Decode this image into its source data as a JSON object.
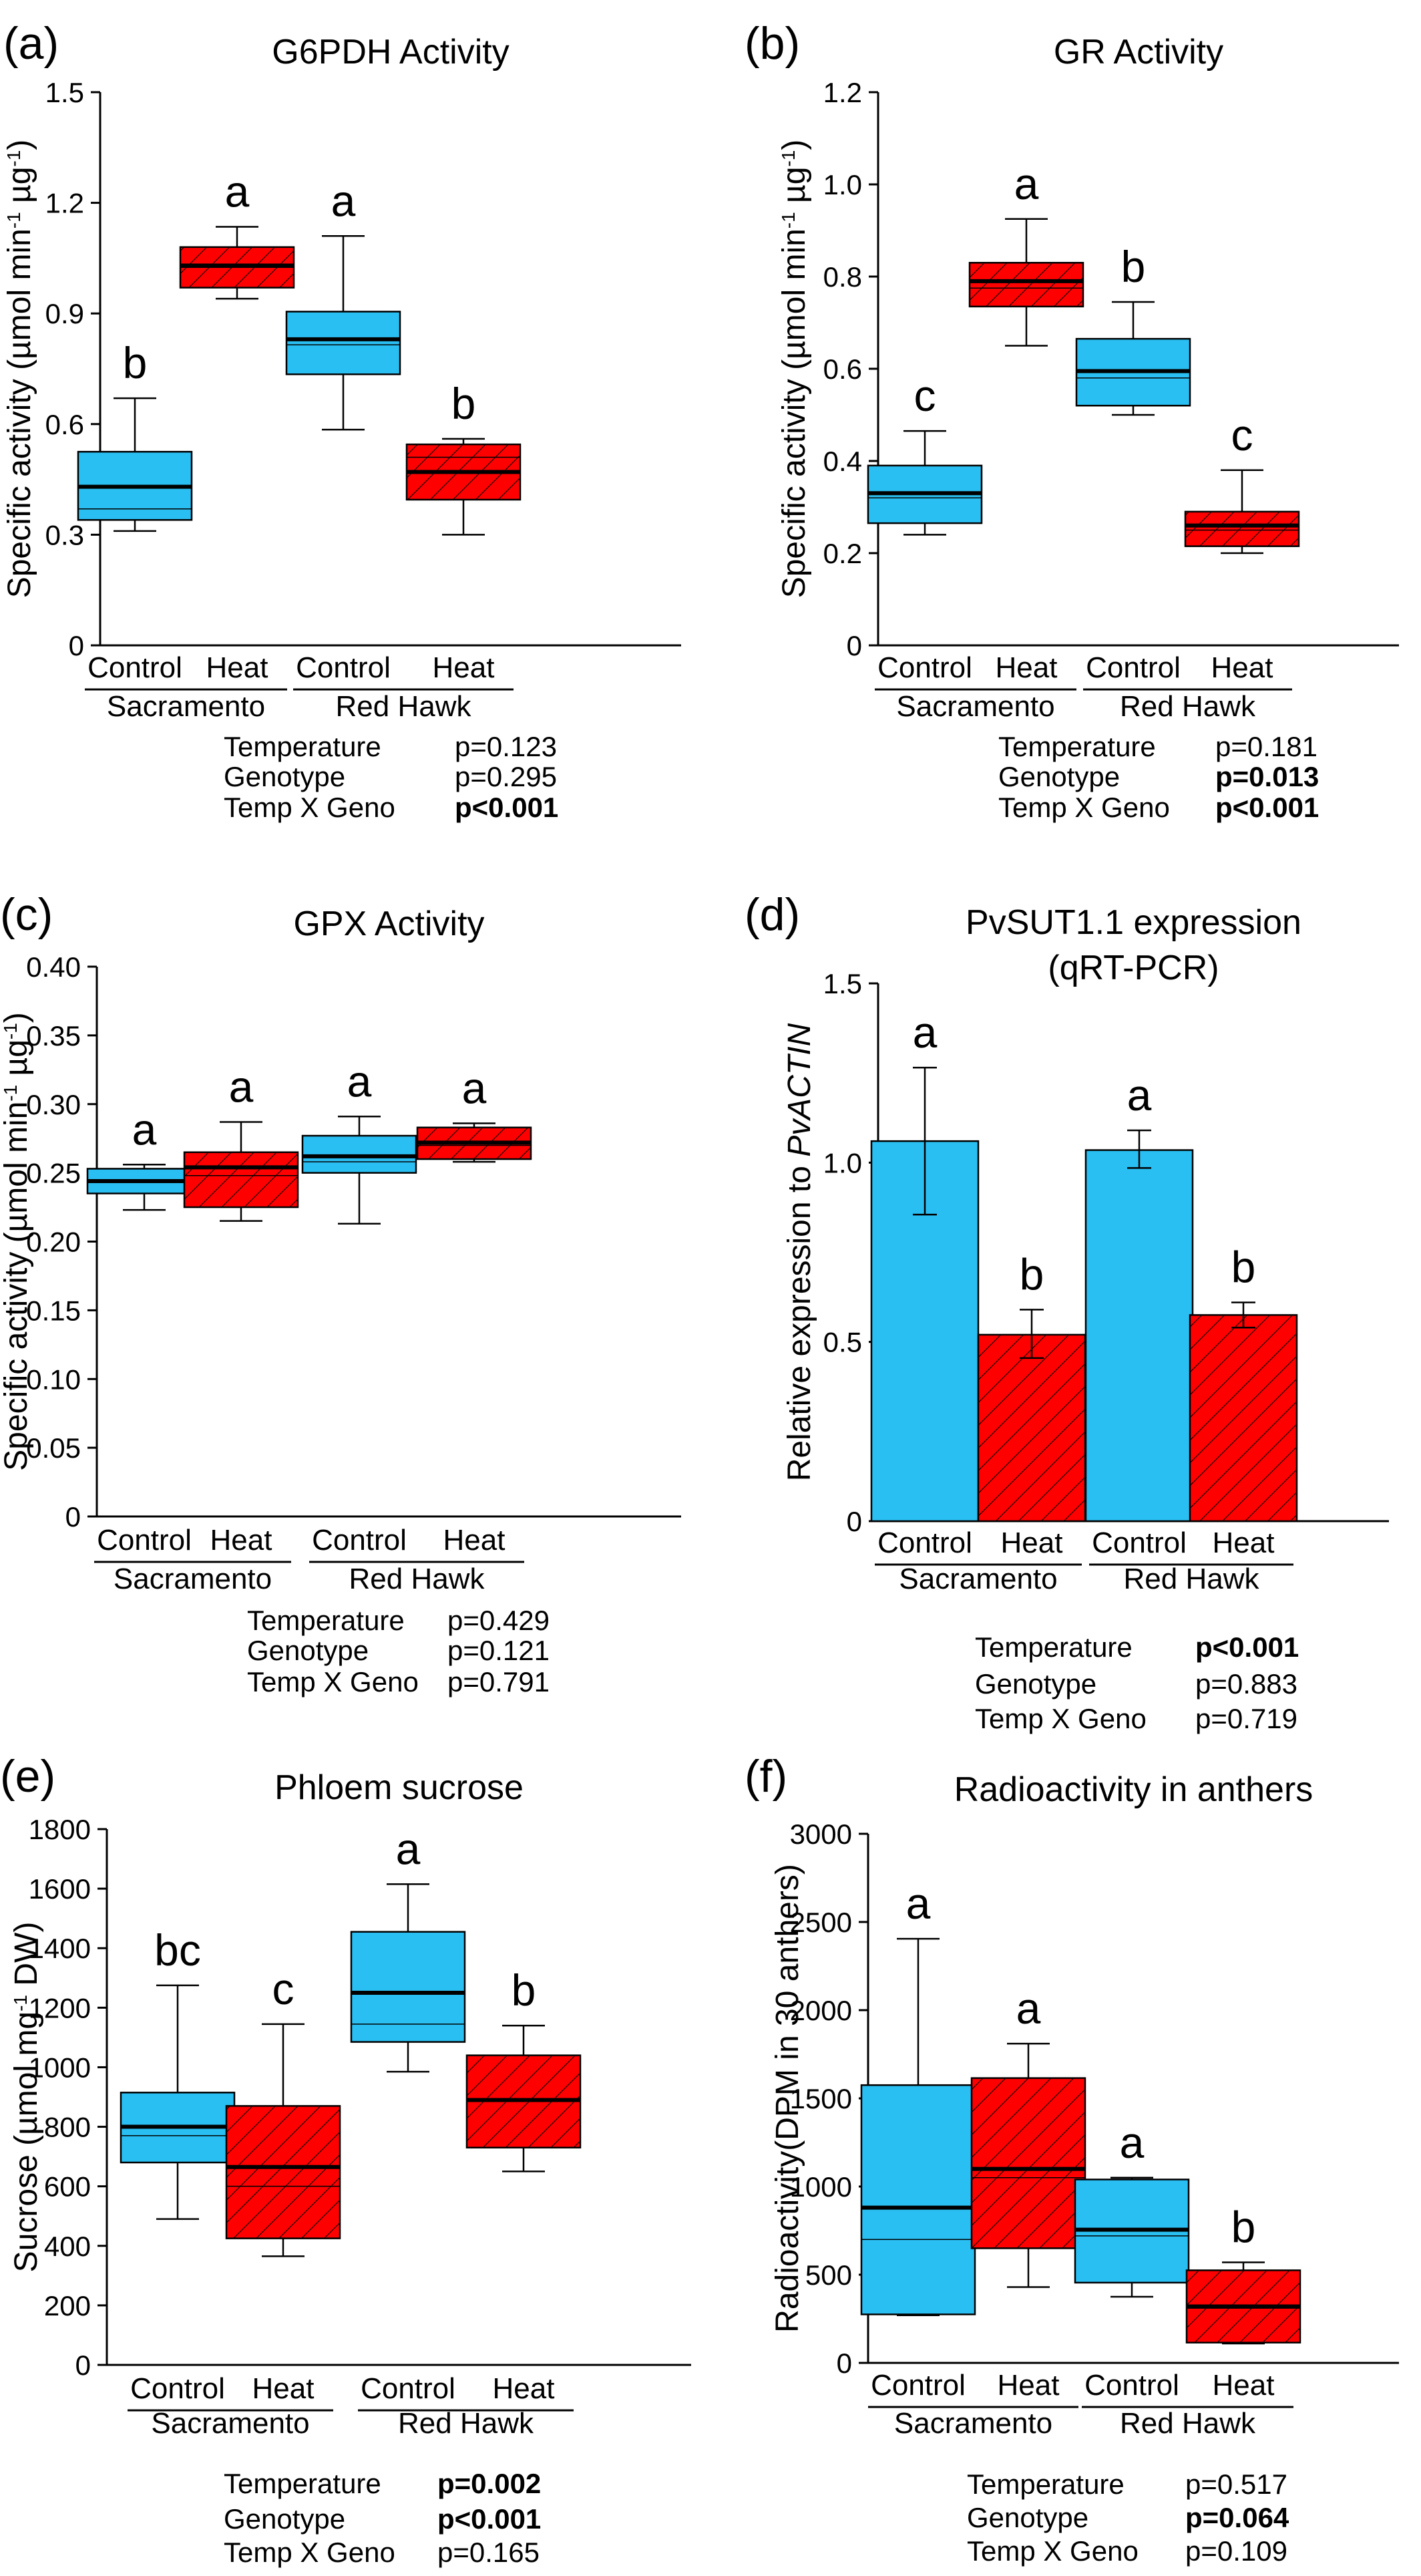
{
  "colors": {
    "control": "#2ABFF2",
    "heat": "#FF0000",
    "edge": "#000000"
  },
  "chart_data": [
    {
      "panel": "(a)",
      "type": "box",
      "title": "G6PDH Activity",
      "ylabel_parts": [
        "Specific activity (µmol min",
        "-1",
        " µg",
        "-1",
        ")"
      ],
      "ylim": [
        0,
        1.5
      ],
      "yticks": [
        "0",
        "0.3",
        "0.6",
        "0.9",
        "1.2",
        "1.5"
      ],
      "categories": [
        "Control",
        "Heat",
        "Control",
        "Heat"
      ],
      "groups": [
        "Sacramento",
        "Red Hawk"
      ],
      "boxes": [
        {
          "min": 0.31,
          "q1": 0.34,
          "median": 0.43,
          "mean": 0.37,
          "q3": 0.525,
          "max": 0.67,
          "letter": "b"
        },
        {
          "min": 0.94,
          "q1": 0.97,
          "median": 1.03,
          "mean": 1.025,
          "q3": 1.08,
          "max": 1.135,
          "letter": "a"
        },
        {
          "min": 0.585,
          "q1": 0.735,
          "median": 0.83,
          "mean": 0.815,
          "q3": 0.905,
          "max": 1.11,
          "letter": "a"
        },
        {
          "min": 0.3,
          "q1": 0.395,
          "median": 0.47,
          "mean": 0.51,
          "q3": 0.545,
          "max": 0.56,
          "letter": "b"
        }
      ],
      "stats": [
        {
          "label": "Temperature",
          "value": "p=0.123",
          "bold": false
        },
        {
          "label": "Genotype",
          "value": "p=0.295",
          "bold": false
        },
        {
          "label": "Temp X Geno",
          "value": "p<0.001",
          "bold": true
        }
      ]
    },
    {
      "panel": "(b)",
      "type": "box",
      "title": "GR Activity",
      "ylabel_parts": [
        "Specific activity (µmol min",
        "-1",
        " µg",
        "-1",
        ")"
      ],
      "ylim": [
        0,
        1.2
      ],
      "yticks": [
        "0",
        "0.2",
        "0.4",
        "0.6",
        "0.8",
        "1.0",
        "1.2"
      ],
      "categories": [
        "Control",
        "Heat",
        "Control",
        "Heat"
      ],
      "groups": [
        "Sacramento",
        "Red Hawk"
      ],
      "boxes": [
        {
          "min": 0.24,
          "q1": 0.265,
          "median": 0.33,
          "mean": 0.32,
          "q3": 0.39,
          "max": 0.465,
          "letter": "c"
        },
        {
          "min": 0.65,
          "q1": 0.735,
          "median": 0.79,
          "mean": 0.775,
          "q3": 0.83,
          "max": 0.925,
          "letter": "a"
        },
        {
          "min": 0.5,
          "q1": 0.52,
          "median": 0.595,
          "mean": 0.58,
          "q3": 0.665,
          "max": 0.745,
          "letter": "b"
        },
        {
          "min": 0.2,
          "q1": 0.215,
          "median": 0.26,
          "mean": 0.25,
          "q3": 0.29,
          "max": 0.38,
          "letter": "c"
        }
      ],
      "stats": [
        {
          "label": "Temperature",
          "value": "p=0.181",
          "bold": false
        },
        {
          "label": "Genotype",
          "value": "p=0.013",
          "bold": true
        },
        {
          "label": "Temp X Geno",
          "value": "p<0.001",
          "bold": true
        }
      ]
    },
    {
      "panel": "(c)",
      "type": "box",
      "title": "GPX Activity",
      "ylabel_parts": [
        "Specific activity (µmol min",
        "-1",
        " µg",
        "-1",
        ")"
      ],
      "ylim": [
        0,
        0.4
      ],
      "yticks": [
        "0",
        "0.05",
        "0.10",
        "0.15",
        "0.20",
        "0.25",
        "0.30",
        "0.35",
        "0.40"
      ],
      "categories": [
        "Control",
        "Heat",
        "Control",
        "Heat"
      ],
      "groups": [
        "Sacramento",
        "Red Hawk"
      ],
      "boxes": [
        {
          "min": 0.223,
          "q1": 0.235,
          "median": 0.244,
          "mean": 0.243,
          "q3": 0.253,
          "max": 0.256,
          "letter": "a"
        },
        {
          "min": 0.215,
          "q1": 0.225,
          "median": 0.254,
          "mean": 0.248,
          "q3": 0.265,
          "max": 0.287,
          "letter": "a"
        },
        {
          "min": 0.213,
          "q1": 0.25,
          "median": 0.262,
          "mean": 0.258,
          "q3": 0.277,
          "max": 0.291,
          "letter": "a"
        },
        {
          "min": 0.258,
          "q1": 0.26,
          "median": 0.272,
          "mean": 0.27,
          "q3": 0.283,
          "max": 0.286,
          "letter": "a"
        }
      ],
      "stats": [
        {
          "label": "Temperature",
          "value": "p=0.429",
          "bold": false
        },
        {
          "label": "Genotype",
          "value": "p=0.121",
          "bold": false
        },
        {
          "label": "Temp X Geno",
          "value": "p=0.791",
          "bold": false
        }
      ]
    },
    {
      "panel": "(d)",
      "type": "bar",
      "title": "PvSUT1.1 expression",
      "subtitle": "(qRT-PCR)",
      "ylabel_plain": "Relative expression to ",
      "ylabel_italic": "PvACTIN",
      "ylim": [
        0,
        1.5
      ],
      "yticks": [
        "0",
        "0.5",
        "1.0",
        "1.5"
      ],
      "categories": [
        "Control",
        "Heat",
        "Control",
        "Heat"
      ],
      "groups": [
        "Sacramento",
        "Red Hawk"
      ],
      "bars": [
        {
          "value": 1.06,
          "err_low": 0.855,
          "err_high": 1.265,
          "letter": "a"
        },
        {
          "value": 0.52,
          "err_low": 0.455,
          "err_high": 0.59,
          "letter": "b"
        },
        {
          "value": 1.035,
          "err_low": 0.985,
          "err_high": 1.09,
          "letter": "a"
        },
        {
          "value": 0.575,
          "err_low": 0.54,
          "err_high": 0.61,
          "letter": "b"
        }
      ],
      "stats": [
        {
          "label": "Temperature",
          "value": "p<0.001",
          "bold": true
        },
        {
          "label": "Genotype",
          "value": "p=0.883",
          "bold": false
        },
        {
          "label": "Temp X Geno",
          "value": "p=0.719",
          "bold": false
        }
      ]
    },
    {
      "panel": "(e)",
      "type": "box",
      "title": "Phloem sucrose",
      "ylabel_parts": [
        "Sucrose (µmol mg",
        "-1",
        " DW)",
        "",
        ""
      ],
      "ylim": [
        0,
        1800
      ],
      "yticks": [
        "0",
        "200",
        "400",
        "600",
        "800",
        "1000",
        "1200",
        "1400",
        "1600",
        "1800"
      ],
      "categories": [
        "Control",
        "Heat",
        "Control",
        "Heat"
      ],
      "groups": [
        "Sacramento",
        "Red Hawk"
      ],
      "boxes": [
        {
          "min": 490,
          "q1": 680,
          "median": 800,
          "mean": 770,
          "q3": 915,
          "max": 1275,
          "letter": "bc"
        },
        {
          "min": 365,
          "q1": 425,
          "median": 665,
          "mean": 600,
          "q3": 870,
          "max": 1145,
          "letter": "c"
        },
        {
          "min": 985,
          "q1": 1085,
          "median": 1250,
          "mean": 1145,
          "q3": 1455,
          "max": 1615,
          "letter": "a"
        },
        {
          "min": 650,
          "q1": 730,
          "median": 890,
          "mean": 885,
          "q3": 1040,
          "max": 1140,
          "letter": "b"
        }
      ],
      "stats": [
        {
          "label": "Temperature",
          "value": "p=0.002",
          "bold": true
        },
        {
          "label": "Genotype",
          "value": "p<0.001",
          "bold": true
        },
        {
          "label": "Temp X Geno",
          "value": "p=0.165",
          "bold": false
        }
      ]
    },
    {
      "panel": "(f)",
      "type": "box",
      "title": "Radioactivity in anthers",
      "ylabel_parts": [
        "Radioactivity(DPM in 30 anthers)",
        "",
        "",
        "",
        ""
      ],
      "ylim": [
        0,
        3000
      ],
      "yticks": [
        "0",
        "500",
        "1000",
        "1500",
        "2000",
        "2500",
        "3000"
      ],
      "categories": [
        "Control",
        "Heat",
        "Control",
        "Heat"
      ],
      "groups": [
        "Sacramento",
        "Red Hawk"
      ],
      "boxes": [
        {
          "min": 270,
          "q1": 275,
          "median": 880,
          "mean": 700,
          "q3": 1575,
          "max": 2405,
          "letter": "a"
        },
        {
          "min": 430,
          "q1": 650,
          "median": 1100,
          "mean": 1050,
          "q3": 1615,
          "max": 1810,
          "letter": "a"
        },
        {
          "min": 375,
          "q1": 455,
          "median": 755,
          "mean": 720,
          "q3": 1040,
          "max": 1050,
          "letter": "a"
        },
        {
          "min": 110,
          "q1": 115,
          "median": 320,
          "mean": 310,
          "q3": 525,
          "max": 570,
          "letter": "b"
        }
      ],
      "stats": [
        {
          "label": "Temperature",
          "value": "p=0.517",
          "bold": false
        },
        {
          "label": "Genotype",
          "value": "p=0.064",
          "bold": true
        },
        {
          "label": "Temp X Geno",
          "value": "p=0.109",
          "bold": false
        }
      ]
    }
  ]
}
